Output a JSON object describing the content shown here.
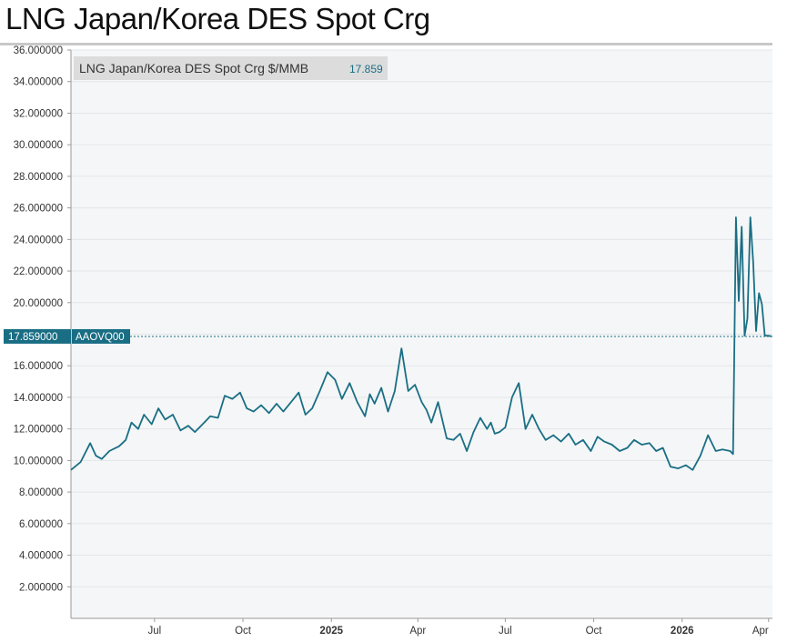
{
  "title": "LNG Japan/Korea DES Spot Crg",
  "colors": {
    "series": "#1a6e84",
    "grid": "#e3e6e8",
    "plot_bg": "#f4f6f7",
    "legend_bg": "#dcdcdc",
    "marker_bg": "#1a6e84"
  },
  "chart_data": {
    "type": "line",
    "title": "LNG Japan/Korea DES Spot Crg",
    "xlabel": "",
    "ylabel": "",
    "ylim": [
      0,
      36
    ],
    "xlim": [
      "2024-04-05",
      "2026-04-05"
    ],
    "grid": true,
    "legend_position": "top-left",
    "y_ticks": [
      "36.000000",
      "34.000000",
      "32.000000",
      "30.000000",
      "28.000000",
      "26.000000",
      "24.000000",
      "22.000000",
      "20.000000",
      "18.000000",
      "16.000000",
      "14.000000",
      "12.000000",
      "10.000000",
      "8.000000",
      "6.000000",
      "4.000000",
      "2.000000"
    ],
    "x_ticks": [
      {
        "date": "2024-07-01",
        "label": "Jul",
        "bold": false
      },
      {
        "date": "2024-10-01",
        "label": "Oct",
        "bold": false
      },
      {
        "date": "2025-01-01",
        "label": "2025",
        "bold": true
      },
      {
        "date": "2025-04-01",
        "label": "Apr",
        "bold": false
      },
      {
        "date": "2025-07-01",
        "label": "Jul",
        "bold": false
      },
      {
        "date": "2025-10-01",
        "label": "Oct",
        "bold": false
      },
      {
        "date": "2026-01-01",
        "label": "2026",
        "bold": true
      },
      {
        "date": "2026-04-01",
        "label": "Apr",
        "bold": false
      }
    ],
    "current_value_label": "17.859000",
    "current_value": 17.859,
    "series": [
      {
        "name": "LNG Japan/Korea DES Spot Crg $/MMB",
        "legend_value": "17.859",
        "code": "AAOVQ00",
        "x": [
          "2024-04-05",
          "2024-04-15",
          "2024-04-25",
          "2024-05-01",
          "2024-05-07",
          "2024-05-15",
          "2024-05-25",
          "2024-06-01",
          "2024-06-07",
          "2024-06-14",
          "2024-06-20",
          "2024-06-28",
          "2024-07-05",
          "2024-07-12",
          "2024-07-20",
          "2024-07-28",
          "2024-08-05",
          "2024-08-12",
          "2024-08-20",
          "2024-08-28",
          "2024-09-05",
          "2024-09-12",
          "2024-09-20",
          "2024-09-28",
          "2024-10-05",
          "2024-10-12",
          "2024-10-20",
          "2024-10-28",
          "2024-11-05",
          "2024-11-12",
          "2024-11-20",
          "2024-11-28",
          "2024-12-05",
          "2024-12-12",
          "2024-12-20",
          "2024-12-28",
          "2025-01-05",
          "2025-01-12",
          "2025-01-20",
          "2025-01-28",
          "2025-02-05",
          "2025-02-10",
          "2025-02-15",
          "2025-02-22",
          "2025-03-01",
          "2025-03-08",
          "2025-03-15",
          "2025-03-22",
          "2025-03-29",
          "2025-04-05",
          "2025-04-10",
          "2025-04-15",
          "2025-04-22",
          "2025-05-01",
          "2025-05-08",
          "2025-05-15",
          "2025-05-22",
          "2025-05-29",
          "2025-06-05",
          "2025-06-12",
          "2025-06-16",
          "2025-06-20",
          "2025-06-25",
          "2025-07-01",
          "2025-07-08",
          "2025-07-15",
          "2025-07-22",
          "2025-07-29",
          "2025-08-05",
          "2025-08-12",
          "2025-08-20",
          "2025-08-28",
          "2025-09-05",
          "2025-09-12",
          "2025-09-20",
          "2025-09-28",
          "2025-10-05",
          "2025-10-12",
          "2025-10-20",
          "2025-10-28",
          "2025-11-05",
          "2025-11-12",
          "2025-11-20",
          "2025-11-28",
          "2025-12-05",
          "2025-12-12",
          "2025-12-20",
          "2025-12-28",
          "2026-01-05",
          "2026-01-12",
          "2026-01-20",
          "2026-01-28",
          "2026-02-05",
          "2026-02-12",
          "2026-02-20",
          "2026-02-23",
          "2026-02-26",
          "2026-03-01",
          "2026-03-04",
          "2026-03-07",
          "2026-03-10",
          "2026-03-13",
          "2026-03-16",
          "2026-03-19",
          "2026-03-22",
          "2026-03-25",
          "2026-03-28",
          "2026-04-01",
          "2026-04-04"
        ],
        "y": [
          9.4,
          9.9,
          11.1,
          10.3,
          10.1,
          10.6,
          10.9,
          11.3,
          12.4,
          12.0,
          12.9,
          12.3,
          13.3,
          12.6,
          12.9,
          11.9,
          12.2,
          11.8,
          12.3,
          12.8,
          12.7,
          14.1,
          13.9,
          14.3,
          13.3,
          13.1,
          13.5,
          13.0,
          13.6,
          13.1,
          13.7,
          14.3,
          12.9,
          13.3,
          14.4,
          15.6,
          15.1,
          13.9,
          14.9,
          13.7,
          12.8,
          14.2,
          13.6,
          14.6,
          13.1,
          14.4,
          17.1,
          14.4,
          14.8,
          13.7,
          13.2,
          12.4,
          13.7,
          11.4,
          11.3,
          11.7,
          10.6,
          11.8,
          12.7,
          12.0,
          12.4,
          11.7,
          11.8,
          12.1,
          14.0,
          14.9,
          12.0,
          12.9,
          12.0,
          11.3,
          11.6,
          11.2,
          11.7,
          11.0,
          11.3,
          10.6,
          11.5,
          11.2,
          11.0,
          10.6,
          10.8,
          11.3,
          11.0,
          11.1,
          10.6,
          10.8,
          9.6,
          9.5,
          9.7,
          9.4,
          10.3,
          11.6,
          10.6,
          10.7,
          10.6,
          10.4,
          25.4,
          20.1,
          24.8,
          17.9,
          19.0,
          25.4,
          22.5,
          18.2,
          20.6,
          19.9,
          17.9,
          17.9,
          17.859
        ]
      }
    ]
  }
}
